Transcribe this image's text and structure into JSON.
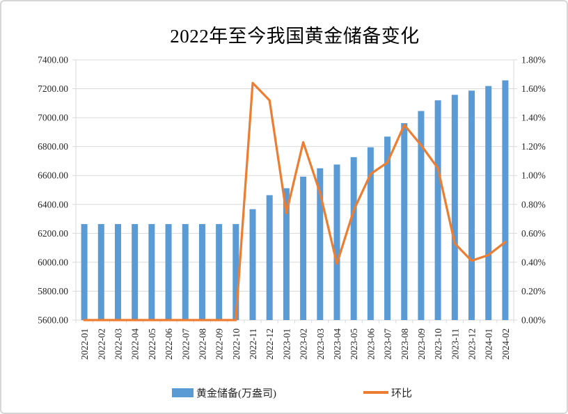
{
  "title": "2022年至今我国黄金储备变化",
  "legend": {
    "items": [
      {
        "label": "黄金储备(万盎司)",
        "swatch": "bar-swatch-icon",
        "color": "#5B9BD5"
      },
      {
        "label": "环比",
        "swatch": "line-swatch-icon",
        "color": "#ED7D31"
      }
    ],
    "position": "bottom"
  },
  "colors": {
    "bar": "#5B9BD5",
    "line": "#ED7D31",
    "grid": "#D9D9D9",
    "axis": "#D9D9D9",
    "text": "#262626",
    "frame_border": "#D6D6D6"
  },
  "chart_data": {
    "type": "bar",
    "subtype": "combo-bar-line-dual-axis",
    "title": "2022年至今我国黄金储备变化",
    "categories": [
      "2022-01",
      "2022-02",
      "2022-03",
      "2022-04",
      "2022-05",
      "2022-06",
      "2022-07",
      "2022-08",
      "2022-09",
      "2022-10",
      "2022-11",
      "2022-12",
      "2023-01",
      "2023-02",
      "2023-03",
      "2023-04",
      "2023-05",
      "2023-06",
      "2023-07",
      "2023-08",
      "2023-09",
      "2023-10",
      "2023-11",
      "2023-12",
      "2024-01",
      "2024-02"
    ],
    "series": [
      {
        "name": "黄金储备(万盎司)",
        "type": "bar",
        "axis": "left",
        "color": "#5B9BD5",
        "values": [
          6264,
          6264,
          6264,
          6264,
          6264,
          6264,
          6264,
          6264,
          6264,
          6264,
          6367,
          6464,
          6512,
          6592,
          6650,
          6676,
          6727,
          6795,
          6869,
          6962,
          7046,
          7120,
          7158,
          7187,
          7219,
          7258
        ]
      },
      {
        "name": "环比",
        "type": "line",
        "axis": "right",
        "color": "#ED7D31",
        "values_percent": [
          0.0,
          0.0,
          0.0,
          0.0,
          0.0,
          0.0,
          0.0,
          0.0,
          0.0,
          0.0,
          1.64,
          1.52,
          0.74,
          1.23,
          0.88,
          0.39,
          0.76,
          1.01,
          1.09,
          1.35,
          1.21,
          1.05,
          0.53,
          0.41,
          0.45,
          0.54
        ]
      }
    ],
    "left_axis": {
      "min": 5600,
      "max": 7400,
      "step": 200,
      "tick_labels": [
        "7400.00",
        "7200.00",
        "7000.00",
        "6800.00",
        "6600.00",
        "6400.00",
        "6200.00",
        "6000.00",
        "5800.00",
        "5600.00"
      ]
    },
    "right_axis": {
      "min": 0,
      "max": 1.8,
      "step": 0.2,
      "tick_labels": [
        "1.80%",
        "1.60%",
        "1.40%",
        "1.20%",
        "1.00%",
        "0.80%",
        "0.60%",
        "0.40%",
        "0.20%",
        "0.00%"
      ]
    },
    "grid": true,
    "x_labels_rotation": -90,
    "legend_position": "bottom"
  }
}
